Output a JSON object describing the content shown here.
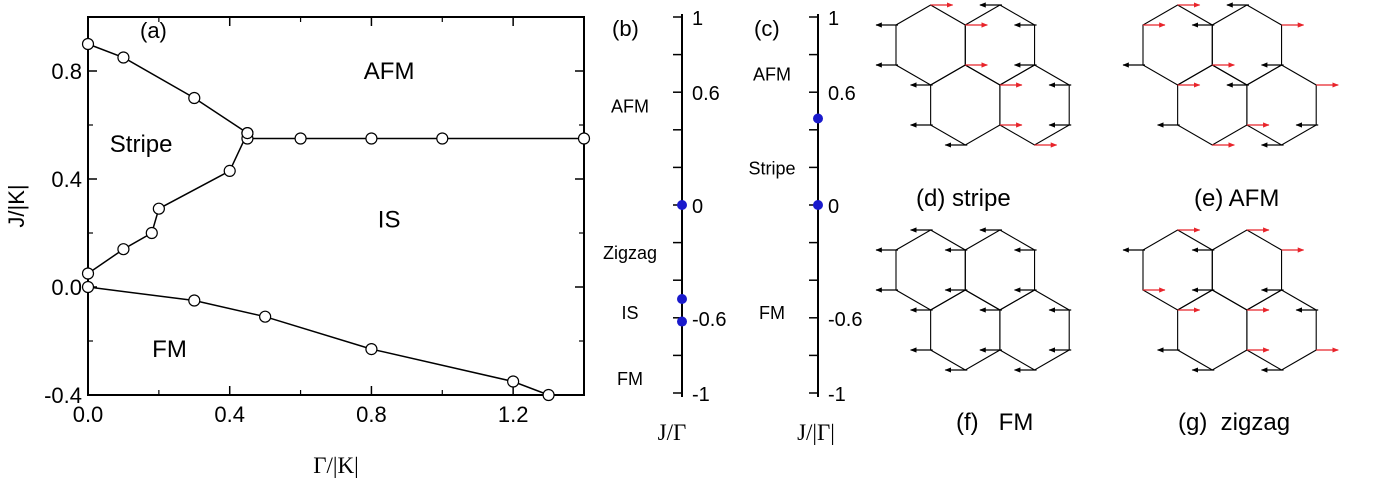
{
  "chart_data": [
    {
      "type": "scatter",
      "panel_label": "(a)",
      "xlabel": "Γ/|K|",
      "ylabel": "J/|K|",
      "xlim": [
        0,
        1.4
      ],
      "ylim": [
        -0.4,
        1.0
      ],
      "xticks": [
        0.0,
        0.4,
        0.8,
        1.2
      ],
      "xtick_labels": [
        "0.0",
        "0.4",
        "0.8",
        "1.2"
      ],
      "yticks": [
        -0.4,
        0.0,
        0.4,
        0.8
      ],
      "ytick_labels": [
        "-0.4",
        "0.0",
        "0.4",
        "0.8"
      ],
      "series": [
        {
          "x": [
            0.0,
            0.1,
            0.3,
            0.45
          ],
          "y": [
            0.9,
            0.85,
            0.7,
            0.57
          ]
        },
        {
          "x": [
            0.45,
            0.6,
            0.8,
            1.0,
            1.4
          ],
          "y": [
            0.55,
            0.55,
            0.55,
            0.55,
            0.55
          ]
        },
        {
          "x": [
            0.0,
            0.1,
            0.18,
            0.2,
            0.4,
            0.45
          ],
          "y": [
            0.05,
            0.14,
            0.2,
            0.29,
            0.43,
            0.57
          ]
        },
        {
          "x": [
            0.0,
            0.3,
            0.5,
            0.8,
            1.2,
            1.3
          ],
          "y": [
            0.0,
            -0.05,
            -0.11,
            -0.23,
            -0.35,
            -0.4
          ]
        }
      ],
      "regions": [
        {
          "label": "AFM",
          "x": 0.85,
          "y": 0.8
        },
        {
          "label": "Stripe",
          "x": 0.15,
          "y": 0.53
        },
        {
          "label": "IS",
          "x": 0.85,
          "y": 0.25
        },
        {
          "label": "FM",
          "x": 0.23,
          "y": -0.23
        }
      ]
    },
    {
      "type": "scatter",
      "panel_label": "(b)",
      "xlabel": "J/Γ",
      "ylim": [
        -1,
        1
      ],
      "tick_labels": [
        {
          "value": 1,
          "label": "1"
        },
        {
          "value": 0.6,
          "label": "0.6"
        },
        {
          "value": 0,
          "label": "0"
        },
        {
          "value": -0.6,
          "label": "-0.6"
        },
        {
          "value": -1,
          "label": "-1"
        }
      ],
      "points": [
        0.0,
        -0.5,
        -0.62
      ],
      "phase_labels": [
        {
          "label": "AFM",
          "y": 0.53
        },
        {
          "label": "Zigzag",
          "y": -0.25
        },
        {
          "label": "IS",
          "y": -0.57
        },
        {
          "label": "FM",
          "y": -0.92
        }
      ],
      "point_color": "#1a1acc"
    },
    {
      "type": "scatter",
      "panel_label": "(c)",
      "xlabel": "J/|Γ|",
      "ylim": [
        -1,
        1
      ],
      "tick_labels": [
        {
          "value": 1,
          "label": "1"
        },
        {
          "value": 0.6,
          "label": "0.6"
        },
        {
          "value": 0,
          "label": "0"
        },
        {
          "value": -0.6,
          "label": "-0.6"
        },
        {
          "value": -1,
          "label": "-1"
        }
      ],
      "points": [
        0.46,
        0.0
      ],
      "phase_labels": [
        {
          "label": "AFM",
          "y": 0.7
        },
        {
          "label": "Stripe",
          "y": 0.2
        },
        {
          "label": "FM",
          "y": -0.57
        }
      ],
      "point_color": "#1a1acc"
    }
  ],
  "spin_panels": [
    {
      "label": "(d)  stripe"
    },
    {
      "label": "(e) AFM"
    },
    {
      "label": "(f)   FM"
    },
    {
      "label": "(g)  zigzag"
    }
  ],
  "colors": {
    "red_arrow": "#e8242b",
    "black_arrow": "#000000",
    "point": "#1a1acc"
  }
}
